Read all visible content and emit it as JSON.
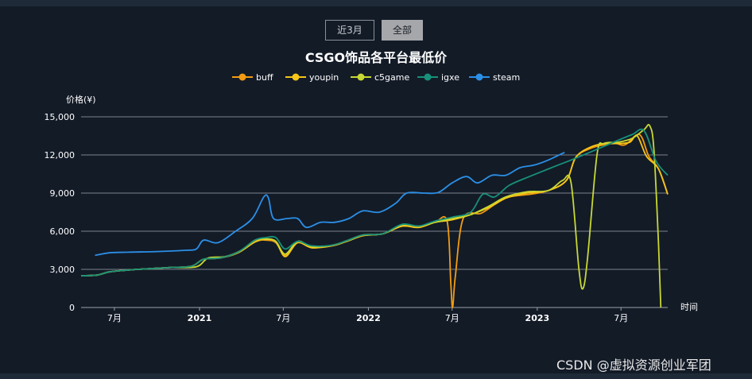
{
  "controls": {
    "range_buttons": [
      {
        "label": "近3月",
        "active": false
      },
      {
        "label": "全部",
        "active": true
      }
    ]
  },
  "watermark": "CSDN @虚拟资源创业军团",
  "chart_data": {
    "type": "line",
    "title": "CSGO饰品各平台最低价",
    "xlabel": "时间",
    "ylabel": "价格(¥)",
    "ylim": [
      0,
      15000
    ],
    "yticks": [
      0,
      3000,
      6000,
      9000,
      12000,
      15000
    ],
    "ytick_labels": [
      "0",
      "3,000",
      "6,000",
      "9,000",
      "12,000",
      "15,000"
    ],
    "xlim": [
      "2020-04-20",
      "2023-10-10"
    ],
    "xticks": [
      {
        "date": "2020-07-01",
        "label": "7月",
        "bold": false
      },
      {
        "date": "2021-01-01",
        "label": "2021",
        "bold": true
      },
      {
        "date": "2021-07-01",
        "label": "7月",
        "bold": false
      },
      {
        "date": "2022-01-01",
        "label": "2022",
        "bold": true
      },
      {
        "date": "2022-07-01",
        "label": "7月",
        "bold": false
      },
      {
        "date": "2023-01-01",
        "label": "2023",
        "bold": true
      },
      {
        "date": "2023-07-01",
        "label": "7月",
        "bold": false
      }
    ],
    "grid": true,
    "legend_position": "top-center",
    "series": [
      {
        "name": "buff",
        "color": "#f39c12",
        "points": [
          [
            "2020-04-20",
            2500
          ],
          [
            "2020-05-25",
            2550
          ],
          [
            "2020-06-20",
            2800
          ],
          [
            "2020-08-01",
            2950
          ],
          [
            "2020-09-15",
            3050
          ],
          [
            "2020-11-01",
            3150
          ],
          [
            "2020-12-15",
            3250
          ],
          [
            "2021-01-10",
            3800
          ],
          [
            "2021-02-15",
            3900
          ],
          [
            "2021-03-25",
            4300
          ],
          [
            "2021-05-01",
            5200
          ],
          [
            "2021-05-25",
            5300
          ],
          [
            "2021-06-15",
            5100
          ],
          [
            "2021-07-05",
            4100
          ],
          [
            "2021-08-01",
            5100
          ],
          [
            "2021-09-01",
            4700
          ],
          [
            "2021-10-15",
            4900
          ],
          [
            "2021-11-15",
            5200
          ],
          [
            "2021-12-20",
            5650
          ],
          [
            "2022-02-01",
            5800
          ],
          [
            "2022-03-15",
            6400
          ],
          [
            "2022-04-20",
            6300
          ],
          [
            "2022-05-25",
            6700
          ],
          [
            "2022-06-20",
            6800
          ],
          [
            "2022-06-28",
            2000
          ],
          [
            "2022-07-02",
            0
          ],
          [
            "2022-07-08",
            2500
          ],
          [
            "2022-07-25",
            7000
          ],
          [
            "2022-09-01",
            7400
          ],
          [
            "2022-10-01",
            8100
          ],
          [
            "2022-11-01",
            8700
          ],
          [
            "2022-12-15",
            8900
          ],
          [
            "2023-01-25",
            9200
          ],
          [
            "2023-03-05",
            10000
          ],
          [
            "2023-03-25",
            11800
          ],
          [
            "2023-04-25",
            12500
          ],
          [
            "2023-05-25",
            12800
          ],
          [
            "2023-06-20",
            12900
          ],
          [
            "2023-07-10",
            12800
          ],
          [
            "2023-08-10",
            13600
          ],
          [
            "2023-08-30",
            11900
          ],
          [
            "2023-09-20",
            10900
          ],
          [
            "2023-10-10",
            8900
          ]
        ]
      },
      {
        "name": "youpin",
        "color": "#f5c518",
        "points": [
          [
            "2020-04-20",
            2500
          ],
          [
            "2020-05-25",
            2550
          ],
          [
            "2020-06-20",
            2800
          ],
          [
            "2020-08-01",
            2950
          ],
          [
            "2020-09-15",
            3050
          ],
          [
            "2020-11-01",
            3150
          ],
          [
            "2020-12-15",
            3250
          ],
          [
            "2021-01-10",
            3800
          ],
          [
            "2021-02-15",
            3900
          ],
          [
            "2021-03-25",
            4300
          ],
          [
            "2021-05-01",
            5150
          ],
          [
            "2021-05-25",
            5350
          ],
          [
            "2021-06-15",
            5200
          ],
          [
            "2021-07-05",
            4000
          ],
          [
            "2021-08-01",
            5100
          ],
          [
            "2021-09-01",
            4700
          ],
          [
            "2021-10-15",
            4850
          ],
          [
            "2021-11-15",
            5200
          ],
          [
            "2021-12-20",
            5650
          ],
          [
            "2022-02-01",
            5800
          ],
          [
            "2022-03-15",
            6400
          ],
          [
            "2022-04-20",
            6300
          ],
          [
            "2022-05-25",
            6700
          ],
          [
            "2022-07-01",
            6900
          ],
          [
            "2022-08-10",
            7300
          ],
          [
            "2022-09-20",
            7900
          ],
          [
            "2022-10-25",
            8600
          ],
          [
            "2022-12-10",
            9000
          ],
          [
            "2023-01-25",
            9200
          ],
          [
            "2023-03-05",
            10000
          ],
          [
            "2023-03-25",
            11800
          ],
          [
            "2023-04-25",
            12600
          ],
          [
            "2023-05-25",
            12900
          ],
          [
            "2023-06-25",
            12900
          ],
          [
            "2023-07-20",
            13000
          ],
          [
            "2023-08-05",
            13500
          ],
          [
            "2023-08-25",
            11900
          ],
          [
            "2023-09-20",
            10900
          ],
          [
            "2023-10-10",
            8900
          ]
        ]
      },
      {
        "name": "c5game",
        "color": "#c8d832",
        "points": [
          [
            "2020-04-20",
            2500
          ],
          [
            "2020-05-25",
            2550
          ],
          [
            "2020-06-20",
            2800
          ],
          [
            "2020-08-01",
            2950
          ],
          [
            "2020-09-15",
            3050
          ],
          [
            "2020-11-01",
            3150
          ],
          [
            "2020-12-25",
            3200
          ],
          [
            "2021-01-20",
            3900
          ],
          [
            "2021-02-25",
            4000
          ],
          [
            "2021-04-01",
            4500
          ],
          [
            "2021-05-01",
            5300
          ],
          [
            "2021-05-25",
            5400
          ],
          [
            "2021-06-15",
            5200
          ],
          [
            "2021-07-05",
            4200
          ],
          [
            "2021-08-01",
            5200
          ],
          [
            "2021-09-01",
            4800
          ],
          [
            "2021-10-15",
            4900
          ],
          [
            "2021-11-15",
            5250
          ],
          [
            "2021-12-20",
            5700
          ],
          [
            "2022-02-01",
            5800
          ],
          [
            "2022-03-15",
            6500
          ],
          [
            "2022-04-20",
            6400
          ],
          [
            "2022-05-25",
            6700
          ],
          [
            "2022-07-01",
            7000
          ],
          [
            "2022-08-10",
            7300
          ],
          [
            "2022-09-20",
            8000
          ],
          [
            "2022-10-25",
            8700
          ],
          [
            "2022-12-10",
            9100
          ],
          [
            "2023-01-25",
            9200
          ],
          [
            "2023-02-25",
            10000
          ],
          [
            "2023-03-15",
            9800
          ],
          [
            "2023-04-01",
            3000
          ],
          [
            "2023-04-10",
            1500
          ],
          [
            "2023-04-20",
            4000
          ],
          [
            "2023-05-10",
            12000
          ],
          [
            "2023-05-25",
            12900
          ],
          [
            "2023-06-25",
            13000
          ],
          [
            "2023-07-25",
            13300
          ],
          [
            "2023-08-20",
            14000
          ],
          [
            "2023-09-01",
            14300
          ],
          [
            "2023-09-10",
            12500
          ],
          [
            "2023-09-20",
            5000
          ],
          [
            "2023-09-25",
            0
          ]
        ]
      },
      {
        "name": "igxe",
        "color": "#17907a",
        "points": [
          [
            "2020-04-20",
            2500
          ],
          [
            "2020-05-25",
            2550
          ],
          [
            "2020-06-20",
            2800
          ],
          [
            "2020-08-01",
            2950
          ],
          [
            "2020-09-15",
            3050
          ],
          [
            "2020-11-01",
            3150
          ],
          [
            "2020-12-15",
            3250
          ],
          [
            "2021-01-10",
            3800
          ],
          [
            "2021-02-15",
            3900
          ],
          [
            "2021-03-25",
            4350
          ],
          [
            "2021-05-01",
            5300
          ],
          [
            "2021-05-25",
            5500
          ],
          [
            "2021-06-15",
            5500
          ],
          [
            "2021-07-05",
            4600
          ],
          [
            "2021-08-01",
            5200
          ],
          [
            "2021-09-01",
            4850
          ],
          [
            "2021-10-15",
            4900
          ],
          [
            "2021-11-15",
            5250
          ],
          [
            "2021-12-20",
            5700
          ],
          [
            "2022-02-01",
            5800
          ],
          [
            "2022-03-15",
            6550
          ],
          [
            "2022-04-20",
            6400
          ],
          [
            "2022-05-25",
            6800
          ],
          [
            "2022-07-01",
            7100
          ],
          [
            "2022-08-10",
            7500
          ],
          [
            "2022-09-05",
            8900
          ],
          [
            "2022-10-01",
            8700
          ],
          [
            "2022-11-01",
            9600
          ],
          [
            "2022-12-15",
            10300
          ],
          [
            "2023-02-01",
            11000
          ],
          [
            "2023-03-15",
            11600
          ],
          [
            "2023-05-01",
            12300
          ],
          [
            "2023-06-15",
            13000
          ],
          [
            "2023-07-25",
            13600
          ],
          [
            "2023-08-20",
            13900
          ],
          [
            "2023-09-15",
            11500
          ],
          [
            "2023-10-10",
            10400
          ]
        ]
      },
      {
        "name": "steam",
        "color": "#2b8fe6",
        "points": [
          [
            "2020-05-20",
            4100
          ],
          [
            "2020-06-20",
            4300
          ],
          [
            "2020-08-01",
            4350
          ],
          [
            "2020-10-01",
            4400
          ],
          [
            "2020-12-01",
            4500
          ],
          [
            "2020-12-25",
            4600
          ],
          [
            "2021-01-10",
            5300
          ],
          [
            "2021-02-10",
            5100
          ],
          [
            "2021-03-20",
            6000
          ],
          [
            "2021-04-25",
            7000
          ],
          [
            "2021-05-20",
            8700
          ],
          [
            "2021-05-30",
            8600
          ],
          [
            "2021-06-10",
            7000
          ],
          [
            "2021-07-10",
            7000
          ],
          [
            "2021-08-01",
            7000
          ],
          [
            "2021-08-20",
            6300
          ],
          [
            "2021-09-20",
            6700
          ],
          [
            "2021-10-20",
            6700
          ],
          [
            "2021-11-20",
            7000
          ],
          [
            "2021-12-20",
            7600
          ],
          [
            "2022-01-25",
            7500
          ],
          [
            "2022-03-01",
            8200
          ],
          [
            "2022-03-25",
            9000
          ],
          [
            "2022-05-01",
            9000
          ],
          [
            "2022-06-01",
            9050
          ],
          [
            "2022-07-01",
            9800
          ],
          [
            "2022-08-01",
            10300
          ],
          [
            "2022-08-25",
            9800
          ],
          [
            "2022-09-25",
            10400
          ],
          [
            "2022-10-25",
            10400
          ],
          [
            "2022-11-25",
            11000
          ],
          [
            "2022-12-25",
            11200
          ],
          [
            "2023-01-25",
            11600
          ],
          [
            "2023-03-01",
            12200
          ]
        ]
      }
    ]
  }
}
